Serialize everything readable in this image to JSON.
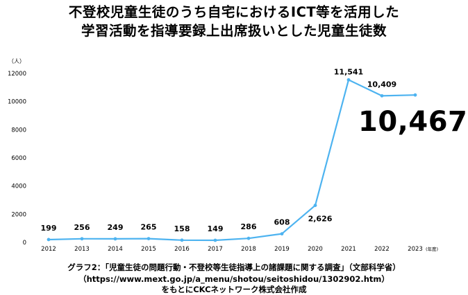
{
  "title": {
    "line1": "不登校児童生徒のうち自宅におけるICT等を活用した",
    "line2": "学習活動を指導要録上出席扱いとした児童生徒数"
  },
  "highlight_value": "10,467",
  "caption": {
    "line1": "グラフ2：「児童生徒の問題行動・不登校等生徒指導上の諸課題に関する調査」（文部科学省）",
    "line2": "（https://www.mext.go.jp/a_menu/shotou/seitoshidou/1302902.htm）",
    "line3": "をもとにCKCネットワーク株式会社作成"
  },
  "chart_data": {
    "type": "line",
    "title": "不登校児童生徒のうち自宅におけるICT等を活用した学習活動を指導要録上出席扱いとした児童生徒数",
    "y_unit_label": "（人）",
    "x_unit_label": "(年度)",
    "ylim": [
      0,
      12000
    ],
    "y_ticks": [
      0,
      2000,
      4000,
      6000,
      8000,
      10000,
      12000
    ],
    "x": [
      "2012",
      "2013",
      "2014",
      "2015",
      "2016",
      "2017",
      "2018",
      "2019",
      "2020",
      "2021",
      "2022",
      "2023"
    ],
    "series": [
      {
        "values": [
          199,
          256,
          249,
          265,
          158,
          149,
          286,
          608,
          2626,
          11541,
          10409,
          10467
        ],
        "labels": [
          "199",
          "256",
          "249",
          "265",
          "158",
          "149",
          "286",
          "608",
          "2,626",
          "11,541",
          "10,409",
          ""
        ]
      }
    ],
    "line_color": "#4db3f0",
    "grid": false,
    "legend": "none"
  }
}
